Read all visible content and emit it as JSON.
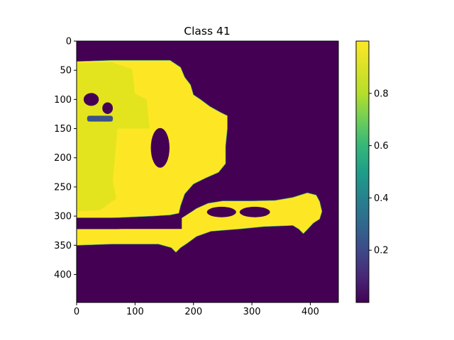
{
  "chart_data": {
    "type": "heatmap",
    "title": "Class 41",
    "xlabel": "",
    "ylabel": "",
    "colormap": "viridis",
    "xlim": [
      0,
      448
    ],
    "ylim": [
      448,
      0
    ],
    "x_ticks": [
      0,
      100,
      200,
      300,
      400
    ],
    "y_ticks": [
      0,
      50,
      100,
      150,
      200,
      250,
      300,
      350,
      400
    ],
    "colorbar": {
      "min": 0.0,
      "max": 1.0,
      "ticks": [
        0.2,
        0.4,
        0.6,
        0.8
      ]
    },
    "colors": {
      "background_low": "#440154",
      "high": "#fde725",
      "high_dim": "#e4e41e",
      "mid_blue": "#3b528b",
      "mid_green": "#35b779"
    },
    "regions": [
      {
        "name": "background",
        "value": 0.0
      },
      {
        "name": "upper-left blob",
        "value": 0.97,
        "x_range": [
          0,
          190
        ],
        "y_range": [
          33,
          305
        ]
      },
      {
        "name": "horizontal bar",
        "value": 0.98,
        "x_range": [
          0,
          420
        ],
        "y_range": [
          258,
          362
        ]
      },
      {
        "name": "hole A",
        "value": 0.0,
        "x": 150,
        "y": 180
      },
      {
        "name": "hole B",
        "value": 0.0,
        "x": 245,
        "y": 293
      },
      {
        "name": "hole C",
        "value": 0.0,
        "x": 298,
        "y": 293
      },
      {
        "name": "hole D",
        "value": 0.0,
        "x": 25,
        "y": 100
      },
      {
        "name": "hole E",
        "value": 0.0,
        "x": 53,
        "y": 115
      },
      {
        "name": "low strip",
        "value": 0.25,
        "x_range": [
          18,
          62
        ],
        "y_range": [
          128,
          138
        ]
      }
    ]
  }
}
